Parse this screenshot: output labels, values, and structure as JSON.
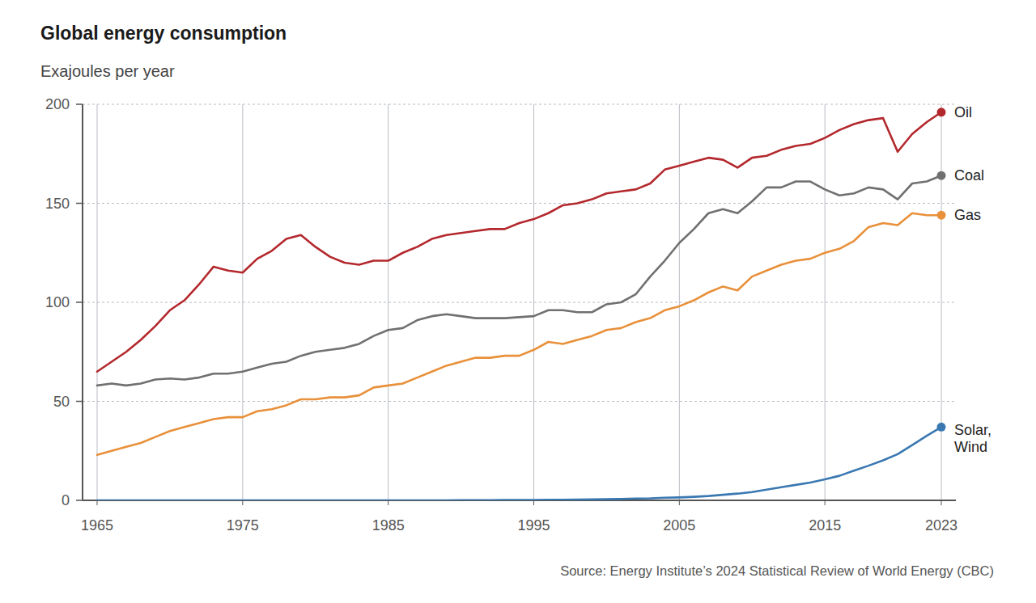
{
  "chart_data": {
    "type": "line",
    "title": "Global energy consumption",
    "subtitle": "Exajoules per year",
    "source": "Source: Energy Institute’s 2024 Statistical Review of World Energy (CBC)",
    "x": [
      1965,
      1966,
      1967,
      1968,
      1969,
      1970,
      1971,
      1972,
      1973,
      1974,
      1975,
      1976,
      1977,
      1978,
      1979,
      1980,
      1981,
      1982,
      1983,
      1984,
      1985,
      1986,
      1987,
      1988,
      1989,
      1990,
      1991,
      1992,
      1993,
      1994,
      1995,
      1996,
      1997,
      1998,
      1999,
      2000,
      2001,
      2002,
      2003,
      2004,
      2005,
      2006,
      2007,
      2008,
      2009,
      2010,
      2011,
      2012,
      2013,
      2014,
      2015,
      2016,
      2017,
      2018,
      2019,
      2020,
      2021,
      2022,
      2023
    ],
    "xlim": [
      1964,
      2024
    ],
    "xticks": [
      1965,
      1975,
      1985,
      1995,
      2005,
      2015,
      2023
    ],
    "ylim": [
      0,
      200
    ],
    "yticks": [
      0,
      50,
      100,
      150,
      200
    ],
    "grid": true,
    "series": [
      {
        "name": "Oil",
        "color": "#b3282d",
        "values": [
          65,
          70,
          75,
          81,
          88,
          96,
          101,
          109,
          118,
          116,
          115,
          122,
          126,
          132,
          134,
          128,
          123,
          120,
          119,
          121,
          121,
          125,
          128,
          132,
          134,
          135,
          136,
          137,
          137,
          140,
          142,
          145,
          149,
          150,
          152,
          155,
          156,
          157,
          160,
          167,
          169,
          171,
          173,
          172,
          168,
          173,
          174,
          177,
          179,
          180,
          183,
          187,
          190,
          192,
          193,
          176,
          185,
          191,
          196
        ]
      },
      {
        "name": "Coal",
        "color": "#707070",
        "values": [
          58,
          59,
          58,
          59,
          61,
          61.5,
          61,
          62,
          64,
          64,
          65,
          67,
          69,
          70,
          73,
          75,
          76,
          77,
          79,
          83,
          86,
          87,
          91,
          93,
          94,
          93,
          92,
          92,
          92,
          92.5,
          93,
          96,
          96,
          95,
          95,
          99,
          100,
          104,
          113,
          121,
          130,
          137,
          145,
          147,
          145,
          151,
          158,
          158,
          161,
          161,
          157,
          154,
          155,
          158,
          157,
          152,
          160,
          161,
          164
        ]
      },
      {
        "name": "Gas",
        "color": "#e8903a",
        "values": [
          23,
          25,
          27,
          29,
          32,
          35,
          37,
          39,
          41,
          42,
          42,
          45,
          46,
          48,
          51,
          51,
          52,
          52,
          53,
          57,
          58,
          59,
          62,
          65,
          68,
          70,
          72,
          72,
          73,
          73,
          76,
          80,
          79,
          81,
          83,
          86,
          87,
          90,
          92,
          96,
          98,
          101,
          105,
          108,
          106,
          113,
          116,
          119,
          121,
          122,
          125,
          127,
          131,
          138,
          140,
          139,
          145,
          144,
          144
        ]
      },
      {
        "name": "Solar, Wind",
        "color": "#3a78b2",
        "values": [
          0,
          0,
          0,
          0,
          0,
          0,
          0,
          0,
          0,
          0,
          0,
          0,
          0,
          0,
          0,
          0,
          0,
          0,
          0,
          0,
          0,
          0,
          0,
          0,
          0,
          0.1,
          0.1,
          0.1,
          0.2,
          0.2,
          0.2,
          0.3,
          0.3,
          0.4,
          0.5,
          0.6,
          0.7,
          0.9,
          1.0,
          1.3,
          1.5,
          1.8,
          2.2,
          2.8,
          3.4,
          4.2,
          5.4,
          6.6,
          7.8,
          9.0,
          10.6,
          12.4,
          15.0,
          17.5,
          20.2,
          23.3,
          27.9,
          32.6,
          37
        ]
      }
    ]
  }
}
